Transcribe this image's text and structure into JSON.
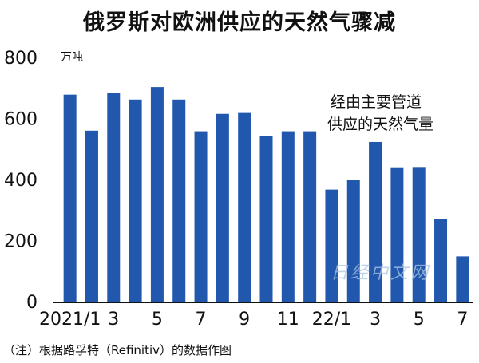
{
  "title": "俄罗斯对欧洲供应的天然气骤减",
  "unit": "万吨",
  "annotation_lines": [
    "经由主要管道",
    "供应的天然气量"
  ],
  "source_note": "（注）根据路孚特（Refinitiv）的数据作图",
  "watermark": "日经中文网",
  "colors": {
    "bar": "#2158ad",
    "axis": "#111111"
  },
  "chart_data": {
    "type": "bar",
    "title": "俄罗斯对欧洲供应的天然气骤减",
    "ylabel": "万吨",
    "ylim": [
      0,
      800
    ],
    "yticks": [
      0,
      200,
      400,
      600,
      800
    ],
    "grid": false,
    "categories": [
      "2021/1",
      "2",
      "3",
      "4",
      "5",
      "6",
      "7",
      "8",
      "9",
      "10",
      "11",
      "12",
      "22/1",
      "2",
      "3",
      "4",
      "5",
      "6",
      "7"
    ],
    "x_tick_labels": [
      "2021/1",
      "",
      "3",
      "",
      "5",
      "",
      "7",
      "",
      "9",
      "",
      "11",
      "",
      "22/1",
      "",
      "3",
      "",
      "5",
      "",
      "7"
    ],
    "values": [
      678,
      560,
      685,
      662,
      703,
      662,
      558,
      615,
      618,
      543,
      558,
      558,
      367,
      400,
      523,
      440,
      441,
      270,
      148
    ]
  }
}
